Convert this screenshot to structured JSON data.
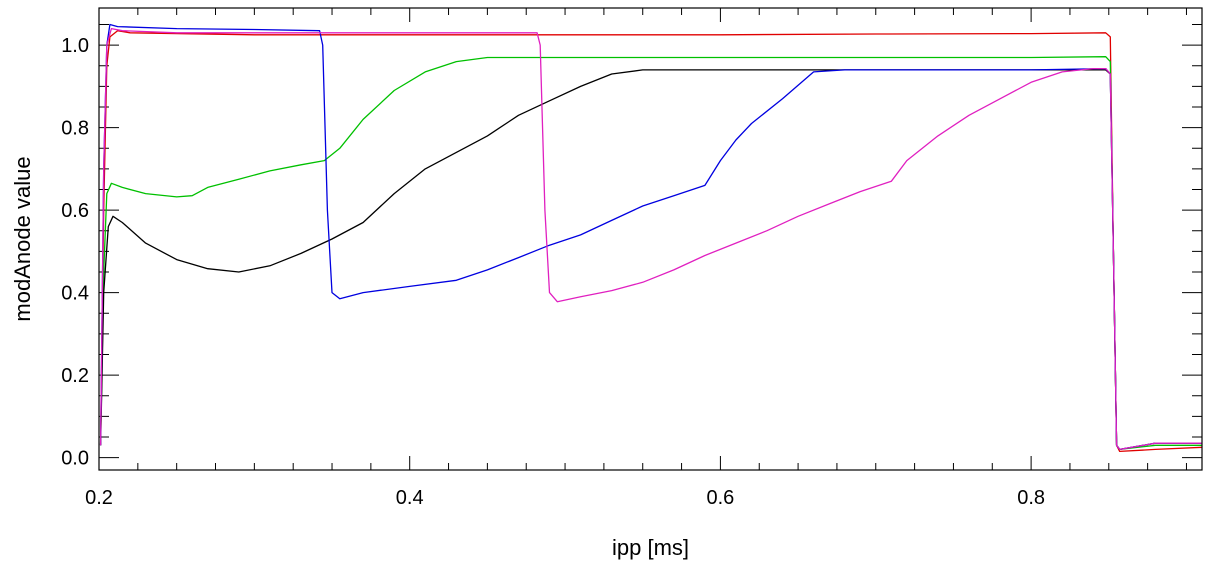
{
  "chart_data": {
    "type": "line",
    "title": "",
    "xlabel": "ipp [ms]",
    "ylabel": "modAnode value",
    "xlim": [
      0.2,
      0.91
    ],
    "ylim": [
      -0.03,
      1.09
    ],
    "grid": false,
    "x_ticks": [
      0.2,
      0.4,
      0.6,
      0.8
    ],
    "x_tick_labels": [
      "0.2",
      "0.4",
      "0.6",
      "0.8"
    ],
    "y_ticks": [
      0.0,
      0.2,
      0.4,
      0.6,
      0.8,
      1.0
    ],
    "y_tick_labels": [
      "0.0",
      "0.2",
      "0.4",
      "0.6",
      "0.8",
      "1.0"
    ],
    "series": [
      {
        "color": "#e00000",
        "points": [
          [
            0.201,
            0.03
          ],
          [
            0.203,
            0.6
          ],
          [
            0.205,
            0.95
          ],
          [
            0.207,
            1.02
          ],
          [
            0.212,
            1.035
          ],
          [
            0.22,
            1.03
          ],
          [
            0.3,
            1.025
          ],
          [
            0.4,
            1.025
          ],
          [
            0.5,
            1.025
          ],
          [
            0.6,
            1.025
          ],
          [
            0.7,
            1.027
          ],
          [
            0.8,
            1.028
          ],
          [
            0.848,
            1.03
          ],
          [
            0.851,
            1.02
          ],
          [
            0.853,
            0.5
          ],
          [
            0.855,
            0.03
          ],
          [
            0.857,
            0.015
          ],
          [
            0.88,
            0.02
          ],
          [
            0.91,
            0.025
          ]
        ]
      },
      {
        "color": "#00c000",
        "points": [
          [
            0.201,
            0.03
          ],
          [
            0.203,
            0.45
          ],
          [
            0.205,
            0.64
          ],
          [
            0.208,
            0.665
          ],
          [
            0.215,
            0.655
          ],
          [
            0.23,
            0.64
          ],
          [
            0.25,
            0.632
          ],
          [
            0.26,
            0.635
          ],
          [
            0.27,
            0.655
          ],
          [
            0.29,
            0.675
          ],
          [
            0.31,
            0.695
          ],
          [
            0.33,
            0.71
          ],
          [
            0.345,
            0.72
          ],
          [
            0.355,
            0.75
          ],
          [
            0.37,
            0.82
          ],
          [
            0.39,
            0.89
          ],
          [
            0.41,
            0.935
          ],
          [
            0.43,
            0.96
          ],
          [
            0.45,
            0.97
          ],
          [
            0.5,
            0.97
          ],
          [
            0.6,
            0.97
          ],
          [
            0.7,
            0.97
          ],
          [
            0.8,
            0.97
          ],
          [
            0.848,
            0.972
          ],
          [
            0.851,
            0.96
          ],
          [
            0.853,
            0.5
          ],
          [
            0.855,
            0.03
          ],
          [
            0.857,
            0.02
          ],
          [
            0.88,
            0.03
          ],
          [
            0.91,
            0.03
          ]
        ]
      },
      {
        "color": "#000000",
        "points": [
          [
            0.201,
            0.03
          ],
          [
            0.203,
            0.4
          ],
          [
            0.206,
            0.56
          ],
          [
            0.209,
            0.585
          ],
          [
            0.215,
            0.57
          ],
          [
            0.23,
            0.52
          ],
          [
            0.25,
            0.48
          ],
          [
            0.27,
            0.458
          ],
          [
            0.29,
            0.45
          ],
          [
            0.31,
            0.465
          ],
          [
            0.33,
            0.495
          ],
          [
            0.35,
            0.53
          ],
          [
            0.37,
            0.57
          ],
          [
            0.39,
            0.64
          ],
          [
            0.41,
            0.7
          ],
          [
            0.43,
            0.74
          ],
          [
            0.45,
            0.78
          ],
          [
            0.47,
            0.83
          ],
          [
            0.49,
            0.865
          ],
          [
            0.51,
            0.9
          ],
          [
            0.53,
            0.93
          ],
          [
            0.55,
            0.94
          ],
          [
            0.6,
            0.94
          ],
          [
            0.7,
            0.94
          ],
          [
            0.8,
            0.94
          ],
          [
            0.848,
            0.94
          ],
          [
            0.851,
            0.93
          ],
          [
            0.853,
            0.5
          ],
          [
            0.855,
            0.03
          ],
          [
            0.857,
            0.02
          ],
          [
            0.88,
            0.035
          ],
          [
            0.91,
            0.035
          ]
        ]
      },
      {
        "color": "#0000e0",
        "points": [
          [
            0.201,
            0.03
          ],
          [
            0.203,
            0.7
          ],
          [
            0.205,
            1.0
          ],
          [
            0.207,
            1.05
          ],
          [
            0.212,
            1.045
          ],
          [
            0.25,
            1.04
          ],
          [
            0.3,
            1.038
          ],
          [
            0.342,
            1.035
          ],
          [
            0.344,
            1.0
          ],
          [
            0.347,
            0.6
          ],
          [
            0.35,
            0.4
          ],
          [
            0.355,
            0.385
          ],
          [
            0.37,
            0.4
          ],
          [
            0.4,
            0.415
          ],
          [
            0.43,
            0.43
          ],
          [
            0.45,
            0.455
          ],
          [
            0.47,
            0.485
          ],
          [
            0.49,
            0.515
          ],
          [
            0.51,
            0.54
          ],
          [
            0.53,
            0.575
          ],
          [
            0.55,
            0.61
          ],
          [
            0.57,
            0.635
          ],
          [
            0.59,
            0.66
          ],
          [
            0.6,
            0.72
          ],
          [
            0.61,
            0.77
          ],
          [
            0.62,
            0.81
          ],
          [
            0.64,
            0.87
          ],
          [
            0.66,
            0.935
          ],
          [
            0.68,
            0.94
          ],
          [
            0.7,
            0.94
          ],
          [
            0.8,
            0.94
          ],
          [
            0.848,
            0.943
          ],
          [
            0.851,
            0.93
          ],
          [
            0.853,
            0.5
          ],
          [
            0.855,
            0.03
          ],
          [
            0.857,
            0.02
          ],
          [
            0.88,
            0.035
          ],
          [
            0.91,
            0.035
          ]
        ]
      },
      {
        "color": "#e020c0",
        "points": [
          [
            0.201,
            0.03
          ],
          [
            0.203,
            0.7
          ],
          [
            0.205,
            1.0
          ],
          [
            0.208,
            1.04
          ],
          [
            0.215,
            1.035
          ],
          [
            0.25,
            1.03
          ],
          [
            0.3,
            1.03
          ],
          [
            0.4,
            1.03
          ],
          [
            0.482,
            1.03
          ],
          [
            0.484,
            1.0
          ],
          [
            0.487,
            0.6
          ],
          [
            0.49,
            0.4
          ],
          [
            0.495,
            0.378
          ],
          [
            0.51,
            0.39
          ],
          [
            0.53,
            0.405
          ],
          [
            0.55,
            0.425
          ],
          [
            0.57,
            0.455
          ],
          [
            0.59,
            0.49
          ],
          [
            0.61,
            0.52
          ],
          [
            0.63,
            0.55
          ],
          [
            0.65,
            0.585
          ],
          [
            0.67,
            0.615
          ],
          [
            0.69,
            0.645
          ],
          [
            0.71,
            0.67
          ],
          [
            0.72,
            0.72
          ],
          [
            0.74,
            0.78
          ],
          [
            0.76,
            0.83
          ],
          [
            0.78,
            0.87
          ],
          [
            0.8,
            0.91
          ],
          [
            0.82,
            0.935
          ],
          [
            0.84,
            0.943
          ],
          [
            0.848,
            0.943
          ],
          [
            0.851,
            0.93
          ],
          [
            0.853,
            0.5
          ],
          [
            0.855,
            0.03
          ],
          [
            0.857,
            0.02
          ],
          [
            0.88,
            0.035
          ],
          [
            0.91,
            0.035
          ]
        ]
      }
    ]
  }
}
